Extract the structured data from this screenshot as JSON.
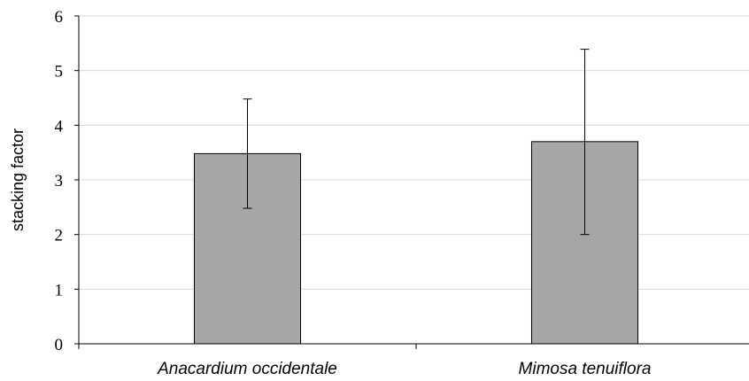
{
  "chart_data": {
    "type": "bar",
    "categories": [
      "Anacardium occidentale",
      "Mimosa tenuiflora"
    ],
    "values": [
      3.48,
      3.7
    ],
    "error_bars": [
      {
        "low": 2.48,
        "high": 4.48
      },
      {
        "low": 2.0,
        "high": 5.39
      }
    ],
    "ylabel": "stacking factor",
    "ylim": [
      0,
      6
    ],
    "yticks": [
      "0",
      "1",
      "2",
      "3",
      "4",
      "5",
      "6"
    ],
    "grid": true,
    "bar_color": "#a6a6a6",
    "gridline_color": "#d9d9d9"
  }
}
